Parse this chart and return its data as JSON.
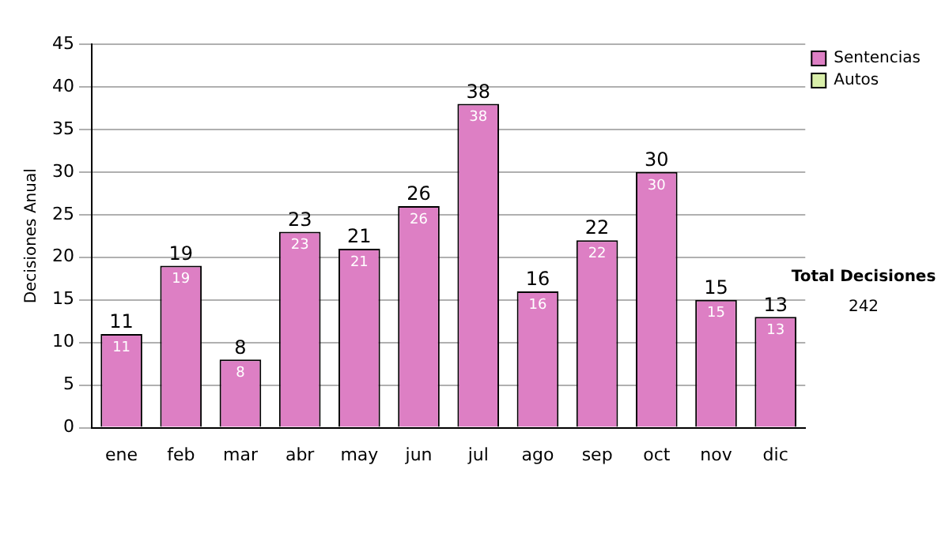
{
  "chart_data": {
    "type": "bar",
    "ylabel": "Decisiones Anual",
    "categories": [
      "ene",
      "feb",
      "mar",
      "abr",
      "may",
      "jun",
      "jul",
      "ago",
      "sep",
      "oct",
      "nov",
      "dic"
    ],
    "series": [
      {
        "name": "Sentencias",
        "color": "#dd7fc4",
        "values": [
          11,
          19,
          8,
          23,
          21,
          26,
          38,
          16,
          22,
          30,
          15,
          13
        ]
      },
      {
        "name": "Autos",
        "color": "#d9efaa",
        "values": [
          null,
          null,
          null,
          null,
          null,
          null,
          null,
          null,
          null,
          null,
          null,
          null
        ]
      }
    ],
    "ylim": [
      0,
      45
    ],
    "yticks": [
      0,
      5,
      10,
      15,
      20,
      25,
      30,
      35,
      40,
      45
    ],
    "grid": "y",
    "legend": "right",
    "data_labels": true,
    "totals": [
      "11",
      "19",
      "8",
      "23",
      "21",
      "26",
      "38",
      "16",
      "22",
      "30",
      "15",
      "13"
    ],
    "annotations": [
      "Total Decisiones",
      "242"
    ]
  }
}
